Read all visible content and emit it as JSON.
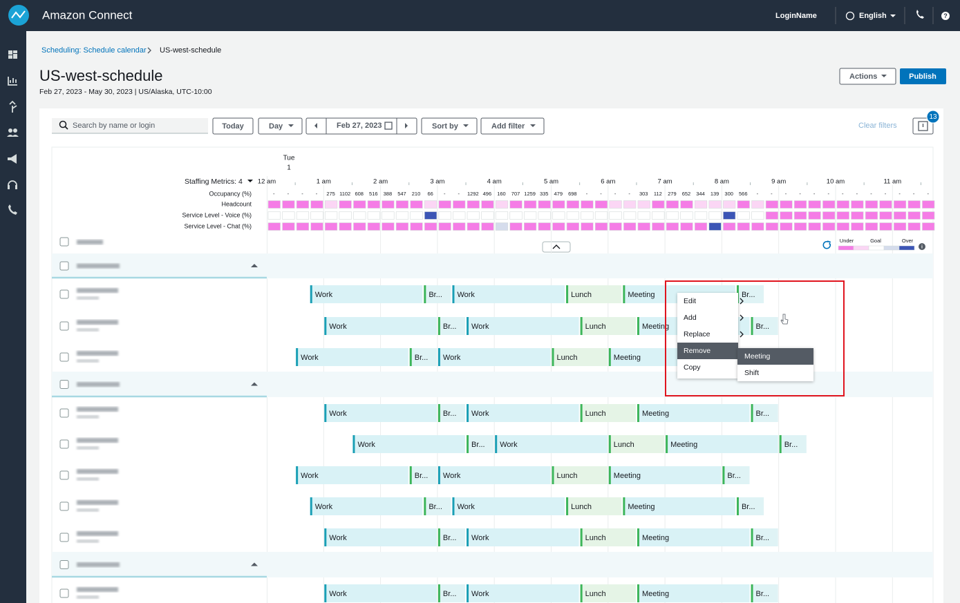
{
  "top_bar": {
    "app_name": "Amazon Connect",
    "user": "LoginName",
    "language": "English"
  },
  "breadcrumb": {
    "parent": "Scheduling: Schedule calendar",
    "current": "US-west-schedule"
  },
  "header": {
    "title": "US-west-schedule",
    "subtitle": "Feb 27, 2023 - May 30, 2023 | US/Alaska, UTC-10:00",
    "actions": "Actions",
    "publish": "Publish"
  },
  "toolbar": {
    "search_placeholder": "Search by name or login",
    "today": "Today",
    "view": "Day",
    "date": "Feb 27, 2023",
    "sort": "Sort by",
    "filter": "Add filter",
    "clear": "Clear filters",
    "notifications": "13"
  },
  "timeline": {
    "day": "Tue",
    "date": "1",
    "metrics_menu": "Staffing Metrics: 4",
    "hours": [
      "12 am",
      "1 am",
      "2 am",
      "3 am",
      "4 am",
      "5 am",
      "6 am",
      "7 am",
      "8 am",
      "9 am",
      "10 am",
      "11 am"
    ]
  },
  "metrics": [
    {
      "label": "Occupancy (%)",
      "values": [
        "-",
        "-",
        "-",
        "-",
        "275",
        "1102",
        "608",
        "516",
        "388",
        "547",
        "210",
        "66",
        "-",
        "-",
        "1292",
        "496",
        "160",
        "707",
        "1259",
        "335",
        "479",
        "698",
        "-",
        "-",
        "-",
        "-",
        "303",
        "112",
        "279",
        "652",
        "344",
        "139",
        "300",
        "566",
        "-",
        "-",
        "-",
        "-",
        "-",
        "-",
        "-",
        "-",
        "-",
        "-",
        "-",
        "-",
        "-"
      ]
    },
    {
      "label": "Headcount",
      "colors": [
        "#f57ce6",
        "#f57ce6",
        "#f57ce6",
        "#f57ce6",
        "#fbd6f5",
        "#f57ce6",
        "#f57ce6",
        "#f57ce6",
        "#f57ce6",
        "#f57ce6",
        "#f57ce6",
        "#fbd6f5",
        "#f57ce6",
        "#f57ce6",
        "#f57ce6",
        "#f57ce6",
        "#fbd6f5",
        "#f57ce6",
        "#f57ce6",
        "#f57ce6",
        "#f57ce6",
        "#f57ce6",
        "#f57ce6",
        "#f57ce6",
        "#fbd6f5",
        "#fbd6f5",
        "#fbd6f5",
        "#f57ce6",
        "#f57ce6",
        "#f57ce6",
        "#fbd6f5",
        "#fbd6f5",
        "#fbd6f5",
        "#f57ce6",
        "#fbd6f5",
        "#f57ce6",
        "#f57ce6",
        "#f57ce6",
        "#f57ce6",
        "#f57ce6",
        "#f57ce6",
        "#f57ce6",
        "#f57ce6",
        "#f57ce6",
        "#f57ce6",
        "#f57ce6",
        "#f57ce6"
      ]
    },
    {
      "label": "Service Level - Voice (%)",
      "colors": [
        "#ffffff",
        "#ffffff",
        "#ffffff",
        "#ffffff",
        "#ffffff",
        "#ffffff",
        "#ffffff",
        "#ffffff",
        "#ffffff",
        "#ffffff",
        "#ffffff",
        "#3c55b5",
        "#ffffff",
        "#ffffff",
        "#ffffff",
        "#ffffff",
        "#ffffff",
        "#ffffff",
        "#ffffff",
        "#ffffff",
        "#ffffff",
        "#ffffff",
        "#ffffff",
        "#ffffff",
        "#ffffff",
        "#ffffff",
        "#ffffff",
        "#ffffff",
        "#ffffff",
        "#ffffff",
        "#ffffff",
        "#ffffff",
        "#3c55b5",
        "#ffffff",
        "#ffffff",
        "#f57ce6",
        "#f57ce6",
        "#f57ce6",
        "#f57ce6",
        "#f57ce6",
        "#f57ce6",
        "#f57ce6",
        "#f57ce6",
        "#f57ce6",
        "#f57ce6",
        "#f57ce6",
        "#f57ce6"
      ]
    },
    {
      "label": "Service Level - Chat (%)",
      "colors": [
        "#f57ce6",
        "#f57ce6",
        "#f57ce6",
        "#f57ce6",
        "#f57ce6",
        "#f57ce6",
        "#f57ce6",
        "#f57ce6",
        "#f57ce6",
        "#f57ce6",
        "#f57ce6",
        "#f57ce6",
        "#f57ce6",
        "#f57ce6",
        "#f57ce6",
        "#f57ce6",
        "#d5dcec",
        "#f57ce6",
        "#f57ce6",
        "#f57ce6",
        "#f57ce6",
        "#f57ce6",
        "#f57ce6",
        "#f57ce6",
        "#f57ce6",
        "#f57ce6",
        "#f57ce6",
        "#f57ce6",
        "#f57ce6",
        "#f57ce6",
        "#f57ce6",
        "#3c55b5",
        "#f57ce6",
        "#f57ce6",
        "#f57ce6",
        "#f57ce6",
        "#f57ce6",
        "#f57ce6",
        "#f57ce6",
        "#f57ce6",
        "#f57ce6",
        "#f57ce6",
        "#f57ce6",
        "#f57ce6",
        "#f57ce6",
        "#f57ce6",
        "#f57ce6"
      ]
    }
  ],
  "legend": {
    "labels": [
      "Under",
      "Goal",
      "Over"
    ],
    "colors": [
      "#f57ce6",
      "#fbd6f5",
      "#ffffff",
      "#d5dcec",
      "#3c55b5"
    ]
  },
  "segment_styles": {
    "Work": {
      "bar": "#1a9fb5",
      "fill": "#d9f2f6"
    },
    "Br...": {
      "bar": "#3cb55a",
      "fill": "#dff3f5"
    },
    "Lunch": {
      "bar": "#3cb55a",
      "fill": "#e5f4e6"
    },
    "Meeting": {
      "bar": "#3cb55a",
      "fill": "#d9f2f6"
    }
  },
  "agents": [
    {
      "segments": [
        [
          "Work",
          0.75,
          2.75
        ],
        [
          "Br...",
          2.75,
          3.25
        ],
        [
          "Work",
          3.25,
          5.25
        ],
        [
          "Lunch",
          5.25,
          6.25
        ],
        [
          "Meeting",
          6.25,
          8.25
        ],
        [
          "Br...",
          8.25,
          8.75
        ]
      ]
    },
    {
      "segments": [
        [
          "Work",
          1,
          3
        ],
        [
          "Br...",
          3,
          3.5
        ],
        [
          "Work",
          3.5,
          5.5
        ],
        [
          "Lunch",
          5.5,
          6.5
        ],
        [
          "Meeting",
          6.5,
          8.5
        ],
        [
          "Br...",
          8.5,
          9
        ]
      ]
    },
    {
      "segments": [
        [
          "Work",
          0.5,
          2.5
        ],
        [
          "Br...",
          2.5,
          3
        ],
        [
          "Work",
          3,
          5
        ],
        [
          "Lunch",
          5,
          6
        ],
        [
          "Meeting",
          6,
          8
        ]
      ]
    },
    {
      "segments": [
        [
          "Work",
          1,
          3
        ],
        [
          "Br...",
          3,
          3.5
        ],
        [
          "Work",
          3.5,
          5.5
        ],
        [
          "Lunch",
          5.5,
          6.5
        ],
        [
          "Meeting",
          6.5,
          8.5
        ],
        [
          "Br...",
          8.5,
          9
        ]
      ]
    },
    {
      "segments": [
        [
          "Work",
          1.5,
          3.5
        ],
        [
          "Br...",
          3.5,
          4
        ],
        [
          "Work",
          4,
          6
        ],
        [
          "Lunch",
          6,
          7
        ],
        [
          "Meeting",
          7,
          9
        ],
        [
          "Br...",
          9,
          9.5
        ]
      ]
    },
    {
      "segments": [
        [
          "Work",
          0.5,
          2.5
        ],
        [
          "Br...",
          2.5,
          3
        ],
        [
          "Work",
          3,
          5
        ],
        [
          "Lunch",
          5,
          6
        ],
        [
          "Meeting",
          6,
          8
        ],
        [
          "Br...",
          8,
          8.5
        ]
      ]
    },
    {
      "segments": [
        [
          "Work",
          0.75,
          2.75
        ],
        [
          "Br...",
          2.75,
          3.25
        ],
        [
          "Work",
          3.25,
          5.25
        ],
        [
          "Lunch",
          5.25,
          6.25
        ],
        [
          "Meeting",
          6.25,
          8.25
        ],
        [
          "Br...",
          8.25,
          8.75
        ]
      ]
    },
    {
      "segments": [
        [
          "Work",
          1,
          3
        ],
        [
          "Br...",
          3,
          3.5
        ],
        [
          "Work",
          3.5,
          5.5
        ],
        [
          "Lunch",
          5.5,
          6.5
        ],
        [
          "Meeting",
          6.5,
          8.5
        ],
        [
          "Br...",
          8.5,
          9
        ]
      ]
    },
    {
      "segments": [
        [
          "Work",
          1,
          3
        ],
        [
          "Br...",
          3,
          3.5
        ],
        [
          "Work",
          3.5,
          5.5
        ],
        [
          "Lunch",
          5.5,
          6.5
        ],
        [
          "Meeting",
          6.5,
          8.5
        ],
        [
          "Br...",
          8.5,
          9
        ]
      ]
    }
  ],
  "context_menu": {
    "items": [
      "Edit",
      "Add",
      "Replace",
      "Remove",
      "Copy"
    ],
    "submenu": [
      "Meeting",
      "Shift"
    ]
  }
}
